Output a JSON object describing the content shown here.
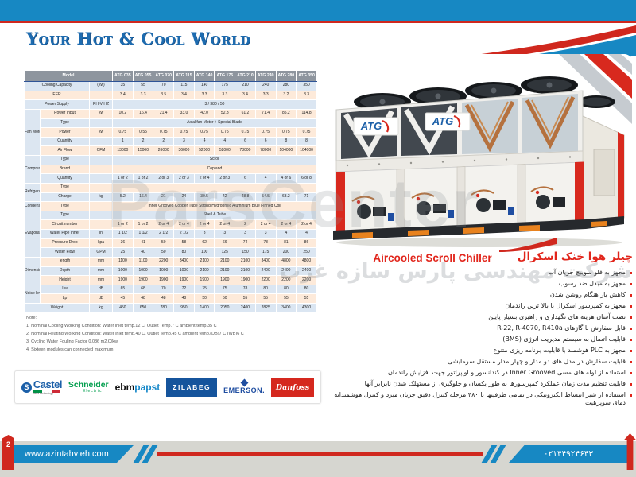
{
  "colors": {
    "blue": "#1788c3",
    "red": "#d0281e",
    "table_header": "#8e959e",
    "row_blue": "#dbe6f2",
    "row_peach": "#fdeada",
    "title_red": "#e1251b"
  },
  "header": {
    "tagline": "Your Hot & Cool World"
  },
  "table": {
    "corner_label": "Model",
    "models": [
      "ATG 035",
      "ATG 055",
      "ATG 070",
      "ATG 115",
      "ATG 140",
      "ATG 175",
      "ATG 210",
      "ATG 240",
      "ATG 280",
      "ATG 350"
    ],
    "rows": [
      {
        "label": "Cooling Capacity",
        "unit": "(kw)",
        "wide": true,
        "tone": "blue",
        "values": [
          "35",
          "55",
          "70",
          "115",
          "140",
          "175",
          "210",
          "240",
          "280",
          "350"
        ]
      },
      {
        "label": "EER",
        "unit": "",
        "wide": true,
        "tone": "peach",
        "values": [
          "3.4",
          "3.3",
          "3.5",
          "3.4",
          "3.3",
          "3.3",
          "3.4",
          "3.3",
          "3.2",
          "3.3"
        ]
      },
      {
        "label": "Power Supply",
        "unit": "PH-V-HZ",
        "wide": true,
        "tone": "blue",
        "merged": "3 / 380 / 50"
      },
      {
        "group": "Fan Motor",
        "groupSpan": 5,
        "label": "Power Input",
        "unit": "kw",
        "tone": "peach",
        "values": [
          "10.2",
          "16.4",
          "21.4",
          "33.0",
          "42.0",
          "52.3",
          "61.2",
          "71.4",
          "85.2",
          "114.8"
        ]
      },
      {
        "label": "Type",
        "unit": "",
        "tone": "blue",
        "merged": "Axial fan Motor + Special Blade"
      },
      {
        "label": "Power",
        "unit": "kw",
        "tone": "peach",
        "values": [
          "0.75",
          "0.55",
          "0.75",
          "0.75",
          "0.75",
          "0.75",
          "0.75",
          "0.75",
          "0.75",
          "0.75"
        ]
      },
      {
        "label": "Quantity",
        "unit": "",
        "tone": "blue",
        "values": [
          "1",
          "2",
          "2",
          "3",
          "4",
          "4",
          "6",
          "6",
          "8",
          "8"
        ]
      },
      {
        "label": "Air Flow",
        "unit": "CFM",
        "tone": "peach",
        "values": [
          "13000",
          "15000",
          "26000",
          "36000",
          "52000",
          "52000",
          "78000",
          "78000",
          "104000",
          "104000"
        ]
      },
      {
        "group": "Compressor",
        "groupSpan": 3,
        "label": "Type",
        "unit": "",
        "tone": "blue",
        "merged": "Scroll"
      },
      {
        "label": "Brand",
        "unit": "",
        "tone": "peach",
        "merged": "Copland"
      },
      {
        "label": "Quantity",
        "unit": "",
        "tone": "blue",
        "values": [
          "1 or 2",
          "1 or 2",
          "2 or 3",
          "2 or 3",
          "2 or 4",
          "2 or 3",
          "6",
          "4",
          "4 or 6",
          "6 or 8"
        ]
      },
      {
        "group": "Refrigerant",
        "groupSpan": 2,
        "label": "Type",
        "unit": "",
        "tone": "peach",
        "merged": ""
      },
      {
        "label": "Charge",
        "unit": "kg",
        "tone": "blue",
        "values": [
          "5.2",
          "16.4",
          "21",
          "24",
          "30.5",
          "42",
          "48.8",
          "54.5",
          "63.2",
          "71"
        ]
      },
      {
        "group": "Condenser",
        "groupSpan": 1,
        "label": "Type",
        "unit": "",
        "tone": "peach",
        "merged": "Inner Grooved Copper Tube Strong Hydrophilic Aluminium Blue Finned Coil"
      },
      {
        "group": "Evaporator",
        "groupSpan": 5,
        "label": "Type",
        "unit": "",
        "tone": "blue",
        "merged": "Shell & Tube"
      },
      {
        "label": "Circuit number",
        "unit": "",
        "tone": "peach",
        "values": [
          "1 or 2",
          "1 or 2",
          "2 or 4",
          "2 or 4",
          "2 or 4",
          "2 or 4",
          "2",
          "2 or 4",
          "2 or 4",
          "2 or 4"
        ]
      },
      {
        "label": "Water Pipe Inner",
        "unit": "in",
        "tone": "blue",
        "values": [
          "1 1/2",
          "1 1/2",
          "2 1/2",
          "2 1/2",
          "3",
          "3",
          "3",
          "3",
          "4",
          "4"
        ]
      },
      {
        "label": "Pressure Drop",
        "unit": "kpa",
        "tone": "peach",
        "values": [
          "36",
          "41",
          "50",
          "58",
          "62",
          "66",
          "74",
          "78",
          "81",
          "86"
        ]
      },
      {
        "label": "Water Flow",
        "unit": "GPM",
        "tone": "blue",
        "values": [
          "25",
          "40",
          "50",
          "80",
          "100",
          "125",
          "150",
          "175",
          "200",
          "250"
        ]
      },
      {
        "group": "Dimension",
        "groupSpan": 3,
        "label": "length",
        "unit": "mm",
        "tone": "peach",
        "values": [
          "1100",
          "1100",
          "2200",
          "3400",
          "2100",
          "2100",
          "2100",
          "3400",
          "4800",
          "4800"
        ]
      },
      {
        "label": "Depth",
        "unit": "mm",
        "tone": "blue",
        "values": [
          "1000",
          "1000",
          "1000",
          "1000",
          "2100",
          "2100",
          "2100",
          "2400",
          "2400",
          "2400"
        ]
      },
      {
        "label": "Height",
        "unit": "mm",
        "tone": "peach",
        "values": [
          "1900",
          "1900",
          "1900",
          "1900",
          "1900",
          "1900",
          "1900",
          "2200",
          "2200",
          "2200"
        ]
      },
      {
        "group": "Noise level",
        "groupSpan": 2,
        "label": "Lw",
        "unit": "dB",
        "tone": "blue",
        "values": [
          "65",
          "68",
          "70",
          "72",
          "75",
          "75",
          "78",
          "80",
          "80",
          "80"
        ]
      },
      {
        "label": "Lp",
        "unit": "dB",
        "tone": "peach",
        "values": [
          "45",
          "48",
          "48",
          "48",
          "50",
          "50",
          "55",
          "55",
          "55",
          "55"
        ]
      },
      {
        "label": "Weight",
        "unit": "kg",
        "wide": true,
        "tone": "blue",
        "values": [
          "450",
          "650",
          "780",
          "950",
          "1400",
          "2050",
          "2400",
          "2825",
          "3400",
          "4300"
        ]
      }
    ]
  },
  "notes": {
    "title": "Note:",
    "items": [
      "1. Nominal Cooling Working Condition: Water inlet temp.12 C, Outlet Temp.7 C ambient temp.35 C",
      "2. Nominal Heating Working Condition: Water inlet temp.40 C, Outlet Temp.45 C ambient temp.(DB)7 C (WB)6 C",
      "3. Cycling Water Fouling Factor 0.086 m2.C/kw",
      "4. Sixteen modules can connected maximum"
    ]
  },
  "logos": {
    "castel": {
      "text": "Castel",
      "icon": "S",
      "tagline": "italia technology"
    },
    "schneider": {
      "text": "Schneider",
      "sub": "Electric"
    },
    "ebmpapst": {
      "text_black": "ebm",
      "text_blue": "papst"
    },
    "zilabeg": {
      "text": "ZILABEG"
    },
    "emerson": {
      "text": "EMERSON."
    },
    "danfoss": {
      "text": "Danfoss"
    }
  },
  "product": {
    "brand": "ATG",
    "title_en": "Aircooled Scroll Chiller",
    "title_fa": "چیلر هوا خنک اسکرال"
  },
  "features_fa": [
    "مجهز به فلو سوییچ جریان آب",
    "مجهز به مبدل ضد رسوب",
    "کاهش بار هنگام روشن شدن",
    "مجهز به کمپرسور اسکرال با بالا ترین راندمان",
    "نصب آسان هزینه های نگهداری و راهبری بسیار پایین",
    "قابل سفارش با گازهای R-22, R-4070, R410a",
    "قابلیت اتصال به سیستم مدیریت انرژی (BMS)",
    "مجهز به PLC هوشمند با قابلیت برنامه ریزی متنوع",
    "قابلیت سفارش در مدل های دو مدار و چهار مدار مستقل سرمایشی",
    "استفاده از لوله های مسی Inner Grooved در کندانسور و اواپراتور جهت افزایش راندمان",
    "قابلیت تنظیم مدت زمان عملکرد کمپرسورها به طور یکسان و جلوگیری از مستهلک شدن نابرابر آنها",
    "استفاده از شیر انبساط الکترونیکی در تمامی ظرفیتها با ۴۸۰ مرحله کنترل دقیق جریان مبرد و کنترل هوشمندانه دمای سوپرهیت"
  ],
  "watermarks": {
    "en": "ParsCenter",
    "fa": "شرکت مهندسی پارس سازه غرب"
  },
  "footer": {
    "page_number": "2",
    "website": "www.azintahvieh.com",
    "phone_fa": "۰۲۱۴۴۹۲۴۶۴۳"
  }
}
